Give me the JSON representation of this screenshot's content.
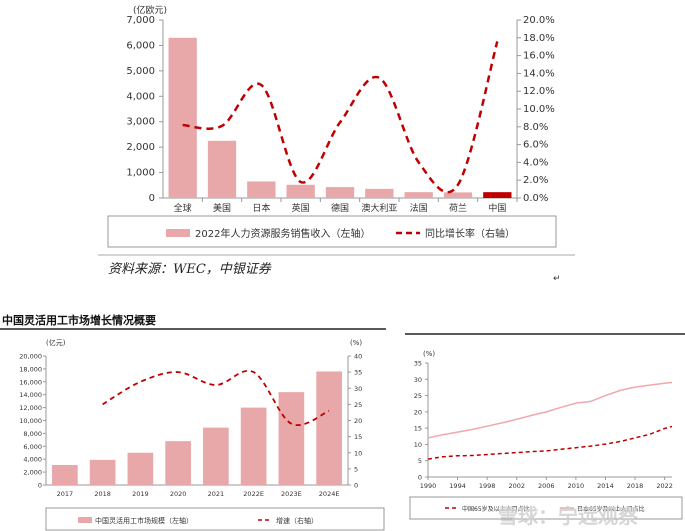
{
  "chart_data": [
    {
      "type": "bar",
      "ylabel_left": "(亿欧元)",
      "categories": [
        "全球",
        "美国",
        "日本",
        "英国",
        "德国",
        "澳大利亚",
        "法国",
        "荷兰",
        "中国"
      ],
      "yticks_left": [
        "0",
        "1,000",
        "2,000",
        "3,000",
        "4,000",
        "5,000",
        "6,000",
        "7,000"
      ],
      "yticks_right": [
        "0.0%",
        "2.0%",
        "4.0%",
        "6.0%",
        "8.0%",
        "10.0%",
        "12.0%",
        "14.0%",
        "16.0%",
        "18.0%",
        "20.0%"
      ],
      "ylim_left": [
        0,
        7000
      ],
      "ylim_right": [
        0,
        20
      ],
      "series": [
        {
          "name": "2022年人力资源服务销售收入（左轴）",
          "axis": "left",
          "kind": "bar",
          "color": "#e8a8aa",
          "highlight_color": "#c00000",
          "values": [
            6300,
            2250,
            650,
            520,
            430,
            360,
            230,
            220,
            230
          ]
        },
        {
          "name": "同比增长率（右轴）",
          "axis": "right",
          "kind": "line",
          "style": "dashed",
          "color": "#c00000",
          "values": [
            8.2,
            8.1,
            12.7,
            1.8,
            8.5,
            13.5,
            4.0,
            1.5,
            17.6
          ]
        }
      ],
      "source": "资料来源：WEC，中银证券",
      "legend_position": "bottom"
    },
    {
      "type": "bar",
      "title": "中国灵活用工市场增长情况概要",
      "ylabel_left": "(亿元)",
      "ylabel_right": "(%)",
      "categories": [
        "2017",
        "2018",
        "2019",
        "2020",
        "2021",
        "2022E",
        "2023E",
        "2024E"
      ],
      "yticks_left": [
        "0",
        "2,000",
        "4,000",
        "6,000",
        "8,000",
        "10,000",
        "12,000",
        "14,000",
        "16,000",
        "18,000",
        "20,000"
      ],
      "yticks_right": [
        "0",
        "5",
        "10",
        "15",
        "20",
        "25",
        "30",
        "35",
        "40"
      ],
      "ylim_left": [
        0,
        20000
      ],
      "ylim_right": [
        0,
        40
      ],
      "series": [
        {
          "name": "中国灵活用工市场规模（左轴）",
          "axis": "left",
          "kind": "bar",
          "color": "#e8a8aa",
          "values": [
            3100,
            3900,
            5000,
            6800,
            8900,
            12000,
            14400,
            17600
          ]
        },
        {
          "name": "增速（右轴）",
          "axis": "right",
          "kind": "line",
          "style": "dashed",
          "color": "#c00000",
          "values": [
            null,
            25,
            32,
            35,
            31,
            35,
            19,
            23
          ]
        }
      ],
      "legend_position": "bottom"
    },
    {
      "type": "line",
      "ylabel": "(%)",
      "x": [
        1990,
        1992,
        1994,
        1996,
        1998,
        2000,
        2002,
        2004,
        2006,
        2008,
        2010,
        2012,
        2014,
        2016,
        2018,
        2020,
        2022,
        2023
      ],
      "xticks": [
        "1990",
        "1994",
        "1998",
        "2002",
        "2006",
        "2010",
        "2014",
        "2018",
        "2022"
      ],
      "yticks": [
        "0",
        "5",
        "10",
        "15",
        "20",
        "25",
        "30",
        "35"
      ],
      "ylim": [
        0,
        35
      ],
      "xlim": [
        1990,
        2023
      ],
      "series": [
        {
          "kind": "solid",
          "color": "#f0a8aa",
          "values": [
            12.0,
            13.0,
            13.8,
            14.6,
            15.6,
            16.6,
            17.7,
            18.9,
            20.0,
            21.4,
            22.7,
            23.2,
            25.0,
            26.6,
            27.6,
            28.2,
            28.8,
            29.0
          ]
        },
        {
          "kind": "dashed",
          "color": "#c00000",
          "values": [
            5.5,
            6.2,
            6.5,
            6.6,
            6.9,
            7.2,
            7.5,
            7.8,
            8.0,
            8.5,
            9.0,
            9.5,
            10.1,
            10.9,
            12.0,
            13.1,
            14.9,
            15.5
          ]
        }
      ],
      "legend": [
        "中国65岁及以上人口占比",
        "日本65岁及以上人口占比"
      ],
      "legend_position": "bottom"
    }
  ],
  "watermark": "雪球：宁远观察",
  "corner_mark": "↵"
}
